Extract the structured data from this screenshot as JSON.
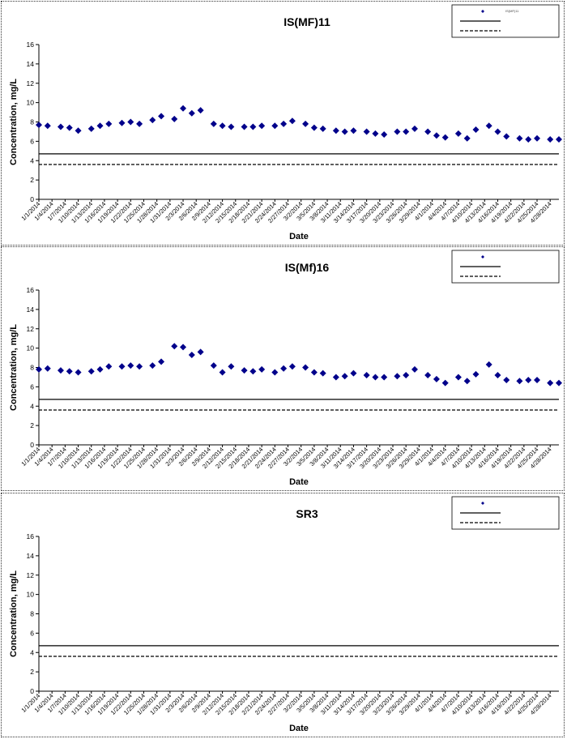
{
  "chart_data": [
    {
      "type": "scatter",
      "title": "IS(MF)11",
      "xlabel": "Date",
      "ylabel": "Concentration, mg/L",
      "ylim": [
        0,
        16
      ],
      "yticks": [
        0,
        2,
        4,
        6,
        8,
        10,
        12,
        14,
        16
      ],
      "x_categories": [
        "1/1/2014",
        "1/4/2014",
        "1/7/2014",
        "1/10/2014",
        "1/13/2014",
        "1/16/2014",
        "1/19/2014",
        "1/22/2014",
        "1/25/2014",
        "1/28/2014",
        "1/31/2014",
        "2/3/2014",
        "2/6/2014",
        "2/9/2014",
        "2/12/2014",
        "2/15/2014",
        "2/18/2014",
        "2/21/2014",
        "2/24/2014",
        "2/27/2014",
        "3/2/2014",
        "3/5/2014",
        "3/8/2014",
        "3/11/2014",
        "3/14/2014",
        "3/17/2014",
        "3/20/2014",
        "3/23/2014",
        "3/26/2014",
        "3/29/2014",
        "4/1/2014",
        "4/4/2014",
        "4/7/2014",
        "4/10/2014",
        "4/13/2014",
        "4/16/2014",
        "4/19/2014",
        "4/22/2014",
        "4/25/2014",
        "4/28/2014"
      ],
      "x_range": [
        "2014-01-01",
        "2014-04-30"
      ],
      "legend": {
        "position": "top-right",
        "entries": [
          "IS(MF)11",
          "",
          ""
        ]
      },
      "series": [
        {
          "marker": "diamond",
          "color": "#00008b",
          "points": [
            [
              "2014-01-01",
              7.7
            ],
            [
              "2014-01-03",
              7.6
            ],
            [
              "2014-01-06",
              7.5
            ],
            [
              "2014-01-08",
              7.4
            ],
            [
              "2014-01-10",
              7.1
            ],
            [
              "2014-01-13",
              7.3
            ],
            [
              "2014-01-15",
              7.6
            ],
            [
              "2014-01-17",
              7.8
            ],
            [
              "2014-01-20",
              7.9
            ],
            [
              "2014-01-22",
              8.0
            ],
            [
              "2014-01-24",
              7.8
            ],
            [
              "2014-01-27",
              8.2
            ],
            [
              "2014-01-29",
              8.6
            ],
            [
              "2014-02-01",
              8.3
            ],
            [
              "2014-02-03",
              9.4
            ],
            [
              "2014-02-05",
              8.9
            ],
            [
              "2014-02-07",
              9.2
            ],
            [
              "2014-02-10",
              7.8
            ],
            [
              "2014-02-12",
              7.6
            ],
            [
              "2014-02-14",
              7.5
            ],
            [
              "2014-02-17",
              7.5
            ],
            [
              "2014-02-19",
              7.5
            ],
            [
              "2014-02-21",
              7.6
            ],
            [
              "2014-02-24",
              7.6
            ],
            [
              "2014-02-26",
              7.8
            ],
            [
              "2014-02-28",
              8.1
            ],
            [
              "2014-03-03",
              7.8
            ],
            [
              "2014-03-05",
              7.4
            ],
            [
              "2014-03-07",
              7.3
            ],
            [
              "2014-03-10",
              7.1
            ],
            [
              "2014-03-12",
              7.0
            ],
            [
              "2014-03-14",
              7.1
            ],
            [
              "2014-03-17",
              7.0
            ],
            [
              "2014-03-19",
              6.8
            ],
            [
              "2014-03-21",
              6.7
            ],
            [
              "2014-03-24",
              7.0
            ],
            [
              "2014-03-26",
              7.0
            ],
            [
              "2014-03-28",
              7.3
            ],
            [
              "2014-03-31",
              7.0
            ],
            [
              "2014-04-02",
              6.6
            ],
            [
              "2014-04-04",
              6.4
            ],
            [
              "2014-04-07",
              6.8
            ],
            [
              "2014-04-09",
              6.3
            ],
            [
              "2014-04-11",
              7.2
            ],
            [
              "2014-04-14",
              7.6
            ],
            [
              "2014-04-16",
              7.0
            ],
            [
              "2014-04-18",
              6.5
            ],
            [
              "2014-04-21",
              6.3
            ],
            [
              "2014-04-23",
              6.2
            ],
            [
              "2014-04-25",
              6.3
            ],
            [
              "2014-04-28",
              6.2
            ],
            [
              "2014-04-30",
              6.2
            ]
          ]
        }
      ],
      "reference_lines": [
        {
          "y": 4.7,
          "style": "solid"
        },
        {
          "y": 3.6,
          "style": "dashed"
        }
      ]
    },
    {
      "type": "scatter",
      "title": "IS(Mf)16",
      "xlabel": "Date",
      "ylabel": "Concentration, mg/L",
      "ylim": [
        0,
        16
      ],
      "yticks": [
        0,
        2,
        4,
        6,
        8,
        10,
        12,
        14,
        16
      ],
      "x_categories": [
        "1/1/2014",
        "1/4/2014",
        "1/7/2014",
        "1/10/2014",
        "1/13/2014",
        "1/16/2014",
        "1/19/2014",
        "1/22/2014",
        "1/25/2014",
        "1/28/2014",
        "1/31/2014",
        "2/3/2014",
        "2/6/2014",
        "2/9/2014",
        "2/12/2014",
        "2/15/2014",
        "2/18/2014",
        "2/21/2014",
        "2/24/2014",
        "2/27/2014",
        "3/2/2014",
        "3/5/2014",
        "3/8/2014",
        "3/11/2014",
        "3/14/2014",
        "3/17/2014",
        "3/20/2014",
        "3/23/2014",
        "3/26/2014",
        "3/29/2014",
        "4/1/2014",
        "4/4/2014",
        "4/7/2014",
        "4/10/2014",
        "4/13/2014",
        "4/16/2014",
        "4/19/2014",
        "4/22/2014",
        "4/25/2014",
        "4/28/2014"
      ],
      "x_range": [
        "2014-01-01",
        "2014-04-30"
      ],
      "legend": {
        "position": "top-right",
        "entries": [
          "",
          "",
          ""
        ]
      },
      "series": [
        {
          "marker": "diamond",
          "color": "#00008b",
          "points": [
            [
              "2014-01-01",
              7.8
            ],
            [
              "2014-01-03",
              7.9
            ],
            [
              "2014-01-06",
              7.7
            ],
            [
              "2014-01-08",
              7.6
            ],
            [
              "2014-01-10",
              7.5
            ],
            [
              "2014-01-13",
              7.6
            ],
            [
              "2014-01-15",
              7.8
            ],
            [
              "2014-01-17",
              8.1
            ],
            [
              "2014-01-20",
              8.1
            ],
            [
              "2014-01-22",
              8.2
            ],
            [
              "2014-01-24",
              8.1
            ],
            [
              "2014-01-27",
              8.2
            ],
            [
              "2014-01-29",
              8.6
            ],
            [
              "2014-02-01",
              10.2
            ],
            [
              "2014-02-03",
              10.1
            ],
            [
              "2014-02-05",
              9.3
            ],
            [
              "2014-02-07",
              9.6
            ],
            [
              "2014-02-10",
              8.2
            ],
            [
              "2014-02-12",
              7.5
            ],
            [
              "2014-02-14",
              8.1
            ],
            [
              "2014-02-17",
              7.7
            ],
            [
              "2014-02-19",
              7.6
            ],
            [
              "2014-02-21",
              7.8
            ],
            [
              "2014-02-24",
              7.5
            ],
            [
              "2014-02-26",
              7.9
            ],
            [
              "2014-02-28",
              8.1
            ],
            [
              "2014-03-03",
              8.0
            ],
            [
              "2014-03-05",
              7.5
            ],
            [
              "2014-03-07",
              7.4
            ],
            [
              "2014-03-10",
              7.0
            ],
            [
              "2014-03-12",
              7.1
            ],
            [
              "2014-03-14",
              7.4
            ],
            [
              "2014-03-17",
              7.2
            ],
            [
              "2014-03-19",
              7.0
            ],
            [
              "2014-03-21",
              7.0
            ],
            [
              "2014-03-24",
              7.1
            ],
            [
              "2014-03-26",
              7.2
            ],
            [
              "2014-03-28",
              7.8
            ],
            [
              "2014-03-31",
              7.2
            ],
            [
              "2014-04-02",
              6.8
            ],
            [
              "2014-04-04",
              6.4
            ],
            [
              "2014-04-07",
              7.0
            ],
            [
              "2014-04-09",
              6.6
            ],
            [
              "2014-04-11",
              7.3
            ],
            [
              "2014-04-14",
              8.3
            ],
            [
              "2014-04-16",
              7.2
            ],
            [
              "2014-04-18",
              6.7
            ],
            [
              "2014-04-21",
              6.6
            ],
            [
              "2014-04-23",
              6.7
            ],
            [
              "2014-04-25",
              6.7
            ],
            [
              "2014-04-28",
              6.4
            ],
            [
              "2014-04-30",
              6.4
            ]
          ]
        }
      ],
      "reference_lines": [
        {
          "y": 4.7,
          "style": "solid"
        },
        {
          "y": 3.6,
          "style": "dashed"
        }
      ]
    },
    {
      "type": "scatter",
      "title": "SR3",
      "xlabel": "Date",
      "ylabel": "Concentration, mg/L",
      "ylim": [
        0,
        16
      ],
      "yticks": [
        0,
        2,
        4,
        6,
        8,
        10,
        12,
        14,
        16
      ],
      "x_categories": [
        "1/1/2014",
        "1/4/2014",
        "1/7/2014",
        "1/10/2014",
        "1/13/2014",
        "1/16/2014",
        "1/19/2014",
        "1/22/2014",
        "1/25/2014",
        "1/28/2014",
        "1/31/2014",
        "2/3/2014",
        "2/6/2014",
        "2/9/2014",
        "2/12/2014",
        "2/15/2014",
        "2/18/2014",
        "2/21/2014",
        "2/24/2014",
        "2/27/2014",
        "3/2/2014",
        "3/5/2014",
        "3/8/2014",
        "3/11/2014",
        "3/14/2014",
        "3/17/2014",
        "3/20/2014",
        "3/23/2014",
        "3/26/2014",
        "3/29/2014",
        "4/1/2014",
        "4/4/2014",
        "4/7/2014",
        "4/10/2014",
        "4/13/2014",
        "4/16/2014",
        "4/19/2014",
        "4/22/2014",
        "4/25/2014",
        "4/28/2014"
      ],
      "x_range": [
        "2014-01-01",
        "2014-04-30"
      ],
      "legend": {
        "position": "top-right",
        "entries": [
          "",
          "",
          ""
        ]
      },
      "series": [
        {
          "marker": "diamond",
          "color": "#00008b",
          "points": []
        }
      ],
      "reference_lines": [
        {
          "y": 4.7,
          "style": "solid"
        },
        {
          "y": 3.6,
          "style": "dashed"
        }
      ]
    }
  ]
}
